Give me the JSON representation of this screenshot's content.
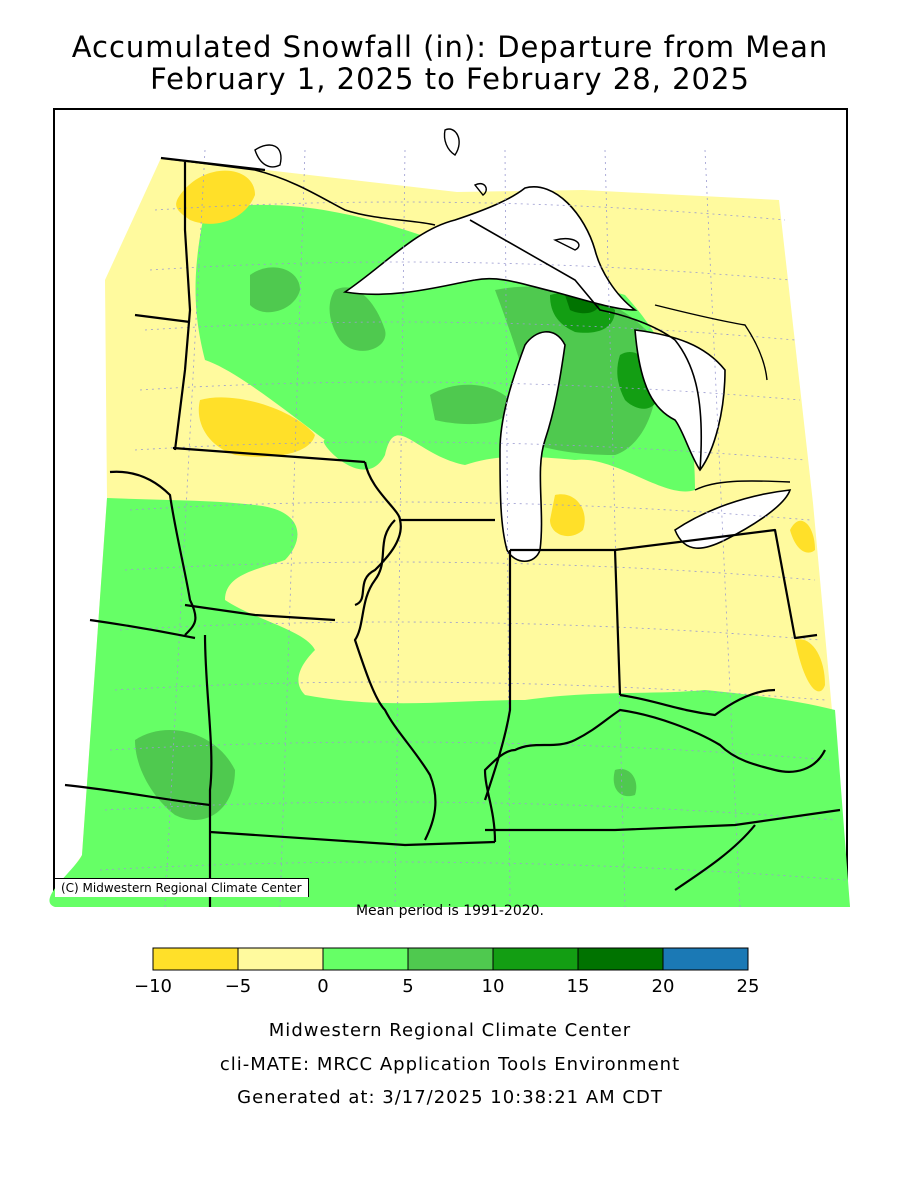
{
  "title_line1": "Accumulated Snowfall (in): Departure from Mean",
  "title_line2": "February 1, 2025 to February 28, 2025",
  "copyright": "(C) Midwestern Regional Climate Center",
  "mean_note": "Mean period is 1991-2020.",
  "legend": {
    "bins": [
      {
        "from": -10,
        "to": -5,
        "color": "#ffe029"
      },
      {
        "from": -5,
        "to": 0,
        "color": "#fffa9e"
      },
      {
        "from": 0,
        "to": 5,
        "color": "#66ff66"
      },
      {
        "from": 5,
        "to": 10,
        "color": "#4fc94f"
      },
      {
        "from": 10,
        "to": 15,
        "color": "#139e13"
      },
      {
        "from": 15,
        "to": 20,
        "color": "#007300"
      },
      {
        "from": 20,
        "to": 25,
        "color": "#1b79b5"
      }
    ],
    "tick_labels": [
      "−10",
      "−5",
      "0",
      "5",
      "10",
      "15",
      "20",
      "25"
    ]
  },
  "footer": {
    "line1": "Midwestern Regional Climate Center",
    "line2": "cli-MATE: MRCC Application Tools Environment",
    "line3": "Generated at: 3/17/2025 10:38:21 AM CDT"
  }
}
